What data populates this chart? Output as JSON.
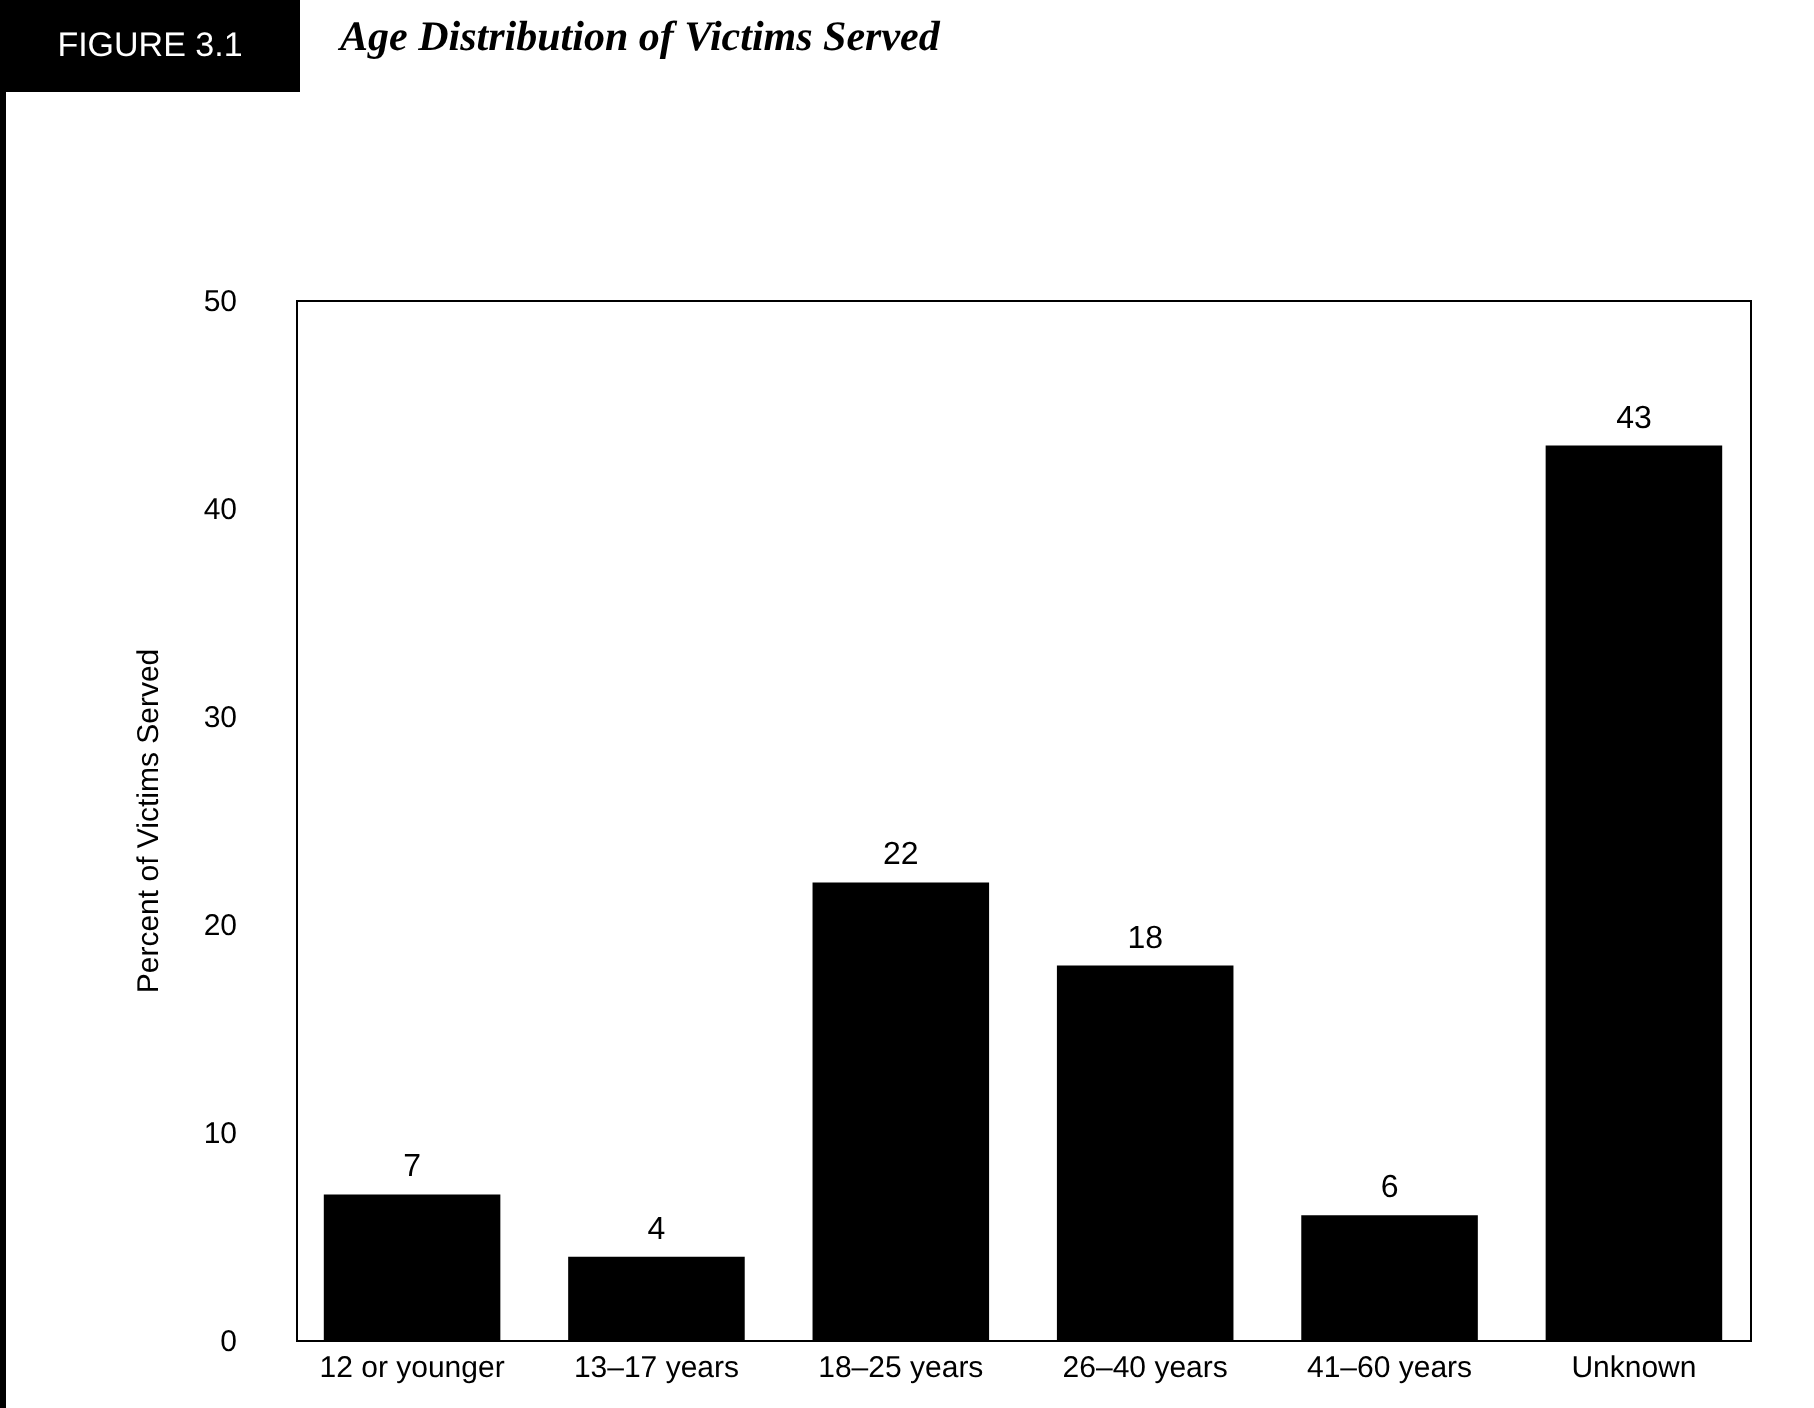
{
  "chart_data": {
    "type": "bar",
    "title": "Age Distribution of Victims Served",
    "annotations": [
      "FIGURE 3.1"
    ],
    "ylabel": "Percent of Victims Served",
    "categories": [
      "12 or younger",
      "13–17 years",
      "18–25 years",
      "26–40 years",
      "41–60 years",
      "Unknown"
    ],
    "values": [
      7,
      4,
      22,
      18,
      6,
      43
    ],
    "color": "#000000",
    "ylim": [
      0,
      50
    ],
    "yticks": [
      0,
      10,
      20,
      30,
      40,
      50
    ],
    "grid": false,
    "data_labels": true
  }
}
